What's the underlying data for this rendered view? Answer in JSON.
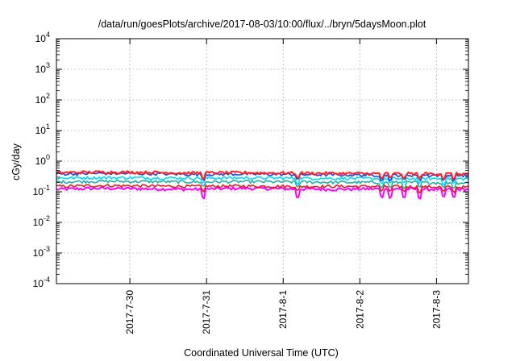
{
  "chart_data": {
    "type": "line",
    "title": "/data/run/goesPlots/archive/2017-08-03/10:00/flux/../bryn/5daysMoon.plot",
    "xlabel": "Coordinated Universal Time (UTC)",
    "ylabel": "cGy/day",
    "y_scale": "log",
    "ylim": [
      0.0001,
      10000
    ],
    "xlim": [
      "2017-07-29T01:00",
      "2017-08-03T10:00"
    ],
    "y_ticks": [
      {
        "value": 0.0001,
        "base": "10",
        "exp": "-4"
      },
      {
        "value": 0.001,
        "base": "10",
        "exp": "-3"
      },
      {
        "value": 0.01,
        "base": "10",
        "exp": "-2"
      },
      {
        "value": 0.1,
        "base": "10",
        "exp": "-1"
      },
      {
        "value": 1,
        "base": "10",
        "exp": "0"
      },
      {
        "value": 10,
        "base": "10",
        "exp": "1"
      },
      {
        "value": 100,
        "base": "10",
        "exp": "2"
      },
      {
        "value": 1000,
        "base": "10",
        "exp": "3"
      },
      {
        "value": 10000,
        "base": "10",
        "exp": "4"
      }
    ],
    "x_ticks": [
      {
        "value": "2017-07-30T00:00",
        "label": "2017-7-30"
      },
      {
        "value": "2017-07-31T00:00",
        "label": "2017-7-31"
      },
      {
        "value": "2017-08-01T00:00",
        "label": "2017-8-1"
      },
      {
        "value": "2017-08-02T00:00",
        "label": "2017-8-2"
      },
      {
        "value": "2017-08-03T00:00",
        "label": "2017-8-3"
      }
    ],
    "grid": true,
    "legend": "none",
    "series": [
      {
        "color": "#ff00ff",
        "values": [
          0.12,
          0.13,
          0.125,
          0.12,
          0.13,
          0.125,
          0.12,
          0.125,
          0.12,
          0.12
        ]
      },
      {
        "color": "#e01e1e",
        "values": [
          0.15,
          0.16,
          0.155,
          0.15,
          0.155,
          0.15,
          0.15,
          0.15,
          0.145,
          0.14
        ]
      },
      {
        "color": "#1fb2a7",
        "values": [
          0.21,
          0.22,
          0.215,
          0.21,
          0.215,
          0.21,
          0.205,
          0.2,
          0.2,
          0.195
        ]
      },
      {
        "color": "#00d8ff",
        "values": [
          0.28,
          0.29,
          0.285,
          0.28,
          0.285,
          0.28,
          0.275,
          0.27,
          0.27,
          0.265
        ]
      },
      {
        "color": "#1f3fe0",
        "values": [
          0.38,
          0.4,
          0.39,
          0.37,
          0.38,
          0.37,
          0.36,
          0.35,
          0.35,
          0.34
        ]
      },
      {
        "color": "#ff2020",
        "values": [
          0.42,
          0.44,
          0.43,
          0.41,
          0.42,
          0.41,
          0.4,
          0.39,
          0.39,
          0.38
        ]
      }
    ]
  }
}
